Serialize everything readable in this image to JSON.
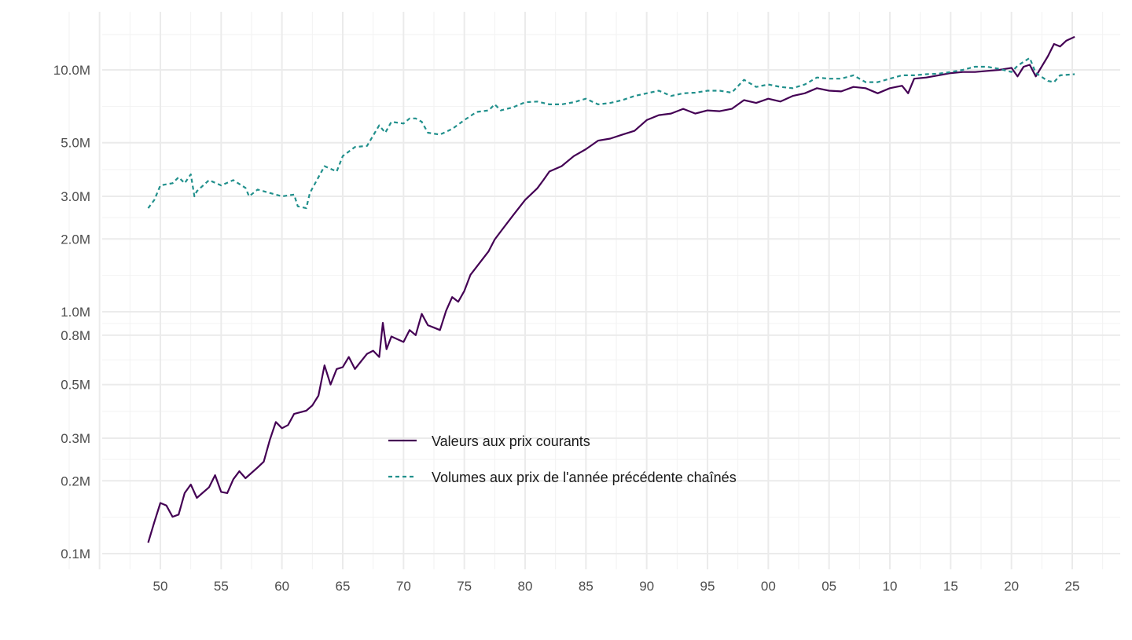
{
  "chart_data": {
    "type": "line",
    "title": "",
    "xlabel": "",
    "ylabel": "",
    "y_scale": "log",
    "ylim": [
      0.09,
      16
    ],
    "xlim": [
      1943,
      2028
    ],
    "y_ticks": [
      {
        "value": 0.1,
        "label": "0.1M"
      },
      {
        "value": 0.2,
        "label": "0.2M"
      },
      {
        "value": 0.3,
        "label": "0.3M"
      },
      {
        "value": 0.5,
        "label": "0.5M"
      },
      {
        "value": 0.8,
        "label": "0.8M"
      },
      {
        "value": 1.0,
        "label": "1.0M"
      },
      {
        "value": 2.0,
        "label": "2.0M"
      },
      {
        "value": 3.0,
        "label": "3.0M"
      },
      {
        "value": 5.0,
        "label": "5.0M"
      },
      {
        "value": 10.0,
        "label": "10.0M"
      }
    ],
    "x_ticks": [
      {
        "value": 1950,
        "label": "50"
      },
      {
        "value": 1955,
        "label": "55"
      },
      {
        "value": 1960,
        "label": "60"
      },
      {
        "value": 1965,
        "label": "65"
      },
      {
        "value": 1970,
        "label": "70"
      },
      {
        "value": 1975,
        "label": "75"
      },
      {
        "value": 1980,
        "label": "80"
      },
      {
        "value": 1985,
        "label": "85"
      },
      {
        "value": 1990,
        "label": "90"
      },
      {
        "value": 1995,
        "label": "95"
      },
      {
        "value": 2000,
        "label": "00"
      },
      {
        "value": 2005,
        "label": "05"
      },
      {
        "value": 2010,
        "label": "10"
      },
      {
        "value": 2015,
        "label": "15"
      },
      {
        "value": 2020,
        "label": "20"
      },
      {
        "value": 2025,
        "label": "25"
      }
    ],
    "grid": true,
    "legend_position": "inside-bottom-center",
    "series": [
      {
        "name": "Valeurs aux prix courants",
        "color": "#440154",
        "dash": "solid",
        "points": [
          [
            1949.0,
            0.111
          ],
          [
            1949.5,
            0.135
          ],
          [
            1950.0,
            0.162
          ],
          [
            1950.5,
            0.158
          ],
          [
            1951.0,
            0.142
          ],
          [
            1951.5,
            0.145
          ],
          [
            1952.0,
            0.178
          ],
          [
            1952.5,
            0.193
          ],
          [
            1953.0,
            0.17
          ],
          [
            1954.0,
            0.188
          ],
          [
            1954.5,
            0.211
          ],
          [
            1955.0,
            0.18
          ],
          [
            1955.5,
            0.178
          ],
          [
            1956.0,
            0.203
          ],
          [
            1956.5,
            0.219
          ],
          [
            1957.0,
            0.205
          ],
          [
            1958.0,
            0.227
          ],
          [
            1958.5,
            0.24
          ],
          [
            1959.0,
            0.295
          ],
          [
            1959.5,
            0.35
          ],
          [
            1960.0,
            0.33
          ],
          [
            1960.5,
            0.34
          ],
          [
            1961.0,
            0.378
          ],
          [
            1962.0,
            0.39
          ],
          [
            1962.5,
            0.41
          ],
          [
            1963.0,
            0.45
          ],
          [
            1963.5,
            0.6
          ],
          [
            1964.0,
            0.5
          ],
          [
            1964.5,
            0.58
          ],
          [
            1965.0,
            0.59
          ],
          [
            1965.5,
            0.65
          ],
          [
            1966.0,
            0.58
          ],
          [
            1967.0,
            0.67
          ],
          [
            1967.5,
            0.69
          ],
          [
            1968.0,
            0.65
          ],
          [
            1968.3,
            0.9
          ],
          [
            1968.6,
            0.7
          ],
          [
            1969.0,
            0.79
          ],
          [
            1970.0,
            0.75
          ],
          [
            1970.5,
            0.84
          ],
          [
            1971.0,
            0.8
          ],
          [
            1971.5,
            0.98
          ],
          [
            1972.0,
            0.88
          ],
          [
            1972.5,
            0.86
          ],
          [
            1973.0,
            0.84
          ],
          [
            1973.5,
            1.01
          ],
          [
            1974.0,
            1.15
          ],
          [
            1974.5,
            1.1
          ],
          [
            1975.0,
            1.22
          ],
          [
            1975.5,
            1.42
          ],
          [
            1976.0,
            1.53
          ],
          [
            1977.0,
            1.78
          ],
          [
            1977.5,
            1.99
          ],
          [
            1978.0,
            2.15
          ],
          [
            1979.0,
            2.5
          ],
          [
            1980.0,
            2.9
          ],
          [
            1981.0,
            3.24
          ],
          [
            1981.5,
            3.5
          ],
          [
            1982.0,
            3.8
          ],
          [
            1983.0,
            4.0
          ],
          [
            1984.0,
            4.4
          ],
          [
            1985.0,
            4.7
          ],
          [
            1986.0,
            5.1
          ],
          [
            1987.0,
            5.2
          ],
          [
            1988.0,
            5.4
          ],
          [
            1989.0,
            5.6
          ],
          [
            1990.0,
            6.2
          ],
          [
            1991.0,
            6.5
          ],
          [
            1992.0,
            6.6
          ],
          [
            1993.0,
            6.9
          ],
          [
            1994.0,
            6.6
          ],
          [
            1995.0,
            6.8
          ],
          [
            1996.0,
            6.75
          ],
          [
            1997.0,
            6.9
          ],
          [
            1998.0,
            7.5
          ],
          [
            1999.0,
            7.3
          ],
          [
            2000.0,
            7.6
          ],
          [
            2001.0,
            7.4
          ],
          [
            2002.0,
            7.8
          ],
          [
            2003.0,
            8.0
          ],
          [
            2004.0,
            8.4
          ],
          [
            2005.0,
            8.2
          ],
          [
            2006.0,
            8.15
          ],
          [
            2007.0,
            8.5
          ],
          [
            2008.0,
            8.4
          ],
          [
            2009.0,
            8.0
          ],
          [
            2010.0,
            8.4
          ],
          [
            2011.0,
            8.6
          ],
          [
            2011.5,
            8.0
          ],
          [
            2012.0,
            9.2
          ],
          [
            2013.0,
            9.3
          ],
          [
            2014.0,
            9.5
          ],
          [
            2015.0,
            9.7
          ],
          [
            2016.0,
            9.8
          ],
          [
            2017.0,
            9.8
          ],
          [
            2018.0,
            9.9
          ],
          [
            2019.0,
            10.0
          ],
          [
            2020.0,
            10.2
          ],
          [
            2020.5,
            9.4
          ],
          [
            2021.0,
            10.3
          ],
          [
            2021.5,
            10.5
          ],
          [
            2022.0,
            9.4
          ],
          [
            2023.0,
            11.4
          ],
          [
            2023.5,
            12.8
          ],
          [
            2024.0,
            12.5
          ],
          [
            2024.5,
            13.2
          ],
          [
            2025.2,
            13.7
          ]
        ]
      },
      {
        "name": "Volumes aux prix de l'année précédente chaînés",
        "color": "#21908C",
        "dash": "dashed",
        "points": [
          [
            1949.0,
            2.68
          ],
          [
            1949.5,
            2.9
          ],
          [
            1950.0,
            3.33
          ],
          [
            1951.0,
            3.4
          ],
          [
            1951.5,
            3.6
          ],
          [
            1952.0,
            3.4
          ],
          [
            1952.5,
            3.7
          ],
          [
            1952.8,
            3.0
          ],
          [
            1953.0,
            3.15
          ],
          [
            1954.0,
            3.5
          ],
          [
            1955.0,
            3.33
          ],
          [
            1956.0,
            3.5
          ],
          [
            1957.0,
            3.25
          ],
          [
            1957.3,
            3.0
          ],
          [
            1958.0,
            3.2
          ],
          [
            1959.0,
            3.1
          ],
          [
            1960.0,
            3.0
          ],
          [
            1961.0,
            3.05
          ],
          [
            1961.3,
            2.73
          ],
          [
            1962.0,
            2.68
          ],
          [
            1962.3,
            3.1
          ],
          [
            1963.0,
            3.6
          ],
          [
            1963.5,
            4.0
          ],
          [
            1964.0,
            3.9
          ],
          [
            1964.5,
            3.8
          ],
          [
            1965.0,
            4.4
          ],
          [
            1966.0,
            4.8
          ],
          [
            1967.0,
            4.85
          ],
          [
            1968.0,
            5.9
          ],
          [
            1968.5,
            5.5
          ],
          [
            1969.0,
            6.1
          ],
          [
            1970.0,
            6.0
          ],
          [
            1970.5,
            6.3
          ],
          [
            1971.0,
            6.3
          ],
          [
            1971.5,
            6.1
          ],
          [
            1972.0,
            5.5
          ],
          [
            1973.0,
            5.4
          ],
          [
            1974.0,
            5.7
          ],
          [
            1975.0,
            6.2
          ],
          [
            1976.0,
            6.7
          ],
          [
            1977.0,
            6.8
          ],
          [
            1977.5,
            7.2
          ],
          [
            1978.0,
            6.8
          ],
          [
            1979.0,
            7.0
          ],
          [
            1980.0,
            7.35
          ],
          [
            1981.0,
            7.4
          ],
          [
            1982.0,
            7.2
          ],
          [
            1983.0,
            7.2
          ],
          [
            1984.0,
            7.35
          ],
          [
            1985.0,
            7.6
          ],
          [
            1986.0,
            7.2
          ],
          [
            1987.0,
            7.3
          ],
          [
            1988.0,
            7.5
          ],
          [
            1989.0,
            7.8
          ],
          [
            1990.0,
            8.0
          ],
          [
            1991.0,
            8.2
          ],
          [
            1992.0,
            7.8
          ],
          [
            1993.0,
            8.0
          ],
          [
            1994.0,
            8.05
          ],
          [
            1995.0,
            8.2
          ],
          [
            1996.0,
            8.2
          ],
          [
            1997.0,
            8.05
          ],
          [
            1998.0,
            9.1
          ],
          [
            1999.0,
            8.5
          ],
          [
            2000.0,
            8.7
          ],
          [
            2001.0,
            8.5
          ],
          [
            2002.0,
            8.4
          ],
          [
            2003.0,
            8.7
          ],
          [
            2004.0,
            9.3
          ],
          [
            2005.0,
            9.2
          ],
          [
            2006.0,
            9.2
          ],
          [
            2007.0,
            9.5
          ],
          [
            2008.0,
            8.9
          ],
          [
            2009.0,
            8.9
          ],
          [
            2010.0,
            9.2
          ],
          [
            2011.0,
            9.5
          ],
          [
            2012.0,
            9.5
          ],
          [
            2013.0,
            9.6
          ],
          [
            2014.0,
            9.65
          ],
          [
            2015.0,
            9.8
          ],
          [
            2016.0,
            10.0
          ],
          [
            2017.0,
            10.3
          ],
          [
            2018.0,
            10.3
          ],
          [
            2019.0,
            10.1
          ],
          [
            2020.0,
            9.8
          ],
          [
            2020.5,
            10.4
          ],
          [
            2021.0,
            10.8
          ],
          [
            2021.5,
            11.2
          ],
          [
            2022.0,
            9.7
          ],
          [
            2023.0,
            9.0
          ],
          [
            2023.5,
            8.9
          ],
          [
            2024.0,
            9.5
          ],
          [
            2025.2,
            9.6
          ]
        ]
      }
    ]
  }
}
